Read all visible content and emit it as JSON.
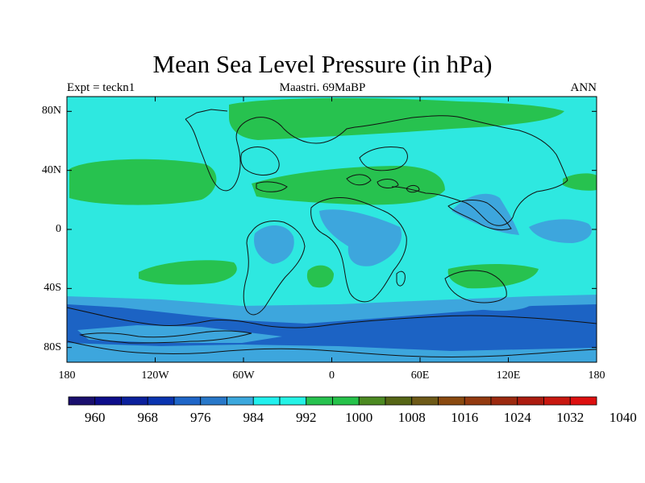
{
  "title": "Mean Sea Level Pressure (in hPa)",
  "subtitle_left": "Expt = teckn1",
  "subtitle_center": "Maastri.  69MaBP",
  "subtitle_right": "ANN",
  "lat_ticks": [
    {
      "label": "80N",
      "value": 80
    },
    {
      "label": "40N",
      "value": 40
    },
    {
      "label": "0",
      "value": 0
    },
    {
      "label": "40S",
      "value": -40
    },
    {
      "label": "80S",
      "value": -80
    }
  ],
  "lon_ticks": [
    {
      "label": "180",
      "value": -180
    },
    {
      "label": "120W",
      "value": -120
    },
    {
      "label": "60W",
      "value": -60
    },
    {
      "label": "0",
      "value": 0
    },
    {
      "label": "60E",
      "value": 60
    },
    {
      "label": "120E",
      "value": 120
    },
    {
      "label": "180",
      "value": 180
    }
  ],
  "colorbar": {
    "colors": [
      "#1a0f6e",
      "#0d0d8a",
      "#0b209c",
      "#0a34b0",
      "#1f66c8",
      "#2878c9",
      "#3ca8dd",
      "#22f0ee",
      "#25f3e6",
      "#27c24f",
      "#26c24a",
      "#4c8a22",
      "#566616",
      "#6e5a18",
      "#8a4a10",
      "#933a10",
      "#9c2a10",
      "#ac1c10",
      "#c81810",
      "#dd1010"
    ],
    "labels": [
      "960",
      "968",
      "976",
      "984",
      "992",
      "1000",
      "1008",
      "1016",
      "1024",
      "1032",
      "1040"
    ]
  },
  "map_colors": {
    "ocean_bg": "#2ee8e0",
    "high_green": "#27c24f",
    "low_mid": "#3da6dd",
    "low_deep": "#1c63c4",
    "coast": "#111111"
  }
}
